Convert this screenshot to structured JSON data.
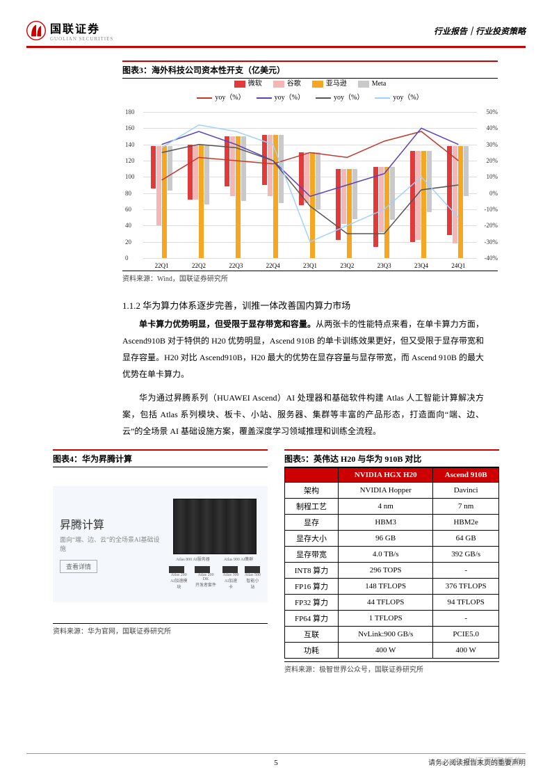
{
  "header": {
    "company": "国联证券",
    "company_en": "GUOLIAN SECURITIES",
    "breadcrumb": "行业报告｜行业投资策略"
  },
  "chart3": {
    "title": "图表3：海外科技公司资本性开支（亿美元）",
    "source": "资料来源：Wind，国联证券研究所",
    "legend_bars": [
      {
        "label": "微软",
        "color": "#e03a3a"
      },
      {
        "label": "谷歌",
        "color": "#f5b6b6"
      },
      {
        "label": "亚马逊",
        "color": "#f5a623"
      },
      {
        "label": "Meta",
        "color": "#c9c9c9"
      }
    ],
    "legend_lines": [
      {
        "label": "yoy（%）",
        "color": "#c0392b"
      },
      {
        "label": "yoy（%）",
        "color": "#5b3fbf"
      },
      {
        "label": "yoy（%）",
        "color": "#555555"
      },
      {
        "label": "yoy（%）",
        "color": "#9fd2ff"
      }
    ],
    "categories": [
      "22Q1",
      "22Q2",
      "22Q3",
      "22Q4",
      "23Q1",
      "23Q2",
      "23Q3",
      "23Q4",
      "24Q1"
    ],
    "y_left": {
      "min": 0,
      "max": 180,
      "step": 20
    },
    "y_right": {
      "min": -40,
      "max": 50,
      "step": 10
    },
    "bars": {
      "微软": [
        52,
        68,
        62,
        62,
        65,
        88,
        98,
        112,
        110
      ],
      "谷歌": [
        98,
        68,
        74,
        76,
        62,
        68,
        80,
        110,
        120
      ],
      "亚马逊": [
        138,
        140,
        150,
        152,
        130,
        110,
        112,
        132,
        138
      ],
      "Meta": [
        55,
        74,
        80,
        84,
        70,
        62,
        65,
        75,
        62
      ]
    },
    "lines": {
      "微软": [
        8,
        22,
        20,
        18,
        25,
        22,
        32,
        38,
        20
      ],
      "谷歌": [
        30,
        38,
        30,
        20,
        -2,
        5,
        12,
        40,
        30
      ],
      "亚马逊": [
        25,
        30,
        28,
        20,
        -8,
        -25,
        -25,
        2,
        5
      ],
      "Meta": [
        28,
        42,
        38,
        30,
        -30,
        -20,
        -10,
        10,
        -15
      ]
    }
  },
  "section": {
    "heading": "1.1.2 华为算力体系逐步完善，训推一体改善国内算力市场",
    "p1_bold": "单卡算力优势明显，但受限于显存带宽和容量。",
    "p1": "从两张卡的性能特点来看，在单卡算力方面，Ascend910B 对于特供的 H20 优势明显，Ascend 910B 的单卡训练效果更好，但又受限于显存带宽和显存容量。H20 对比 Ascend910B，H20 最大的优势在显存容量与显存带宽，而 Ascend 910B 的最大优势在单卡算力。",
    "p2": "华为通过昇腾系列（HUAWEI Ascend）AI 处理器和基础软件构建 Atlas 人工智能计算解决方案，包括 Atlas 系列模块、板卡、小站、服务器、集群等丰富的产品形态，打造面向“端、边、云”的全场景 AI 基础设施方案，覆盖深度学习领域推理和训练全流程。"
  },
  "panel4": {
    "title": "图表4：华为昇腾计算",
    "promo_title": "昇腾计算",
    "promo_sub": "面向“端、边、云”的全场景AI基础设施",
    "btn": "查看详情",
    "boxes": [
      "Atlas 200",
      "Atlas 200 DK",
      "Atlas 300",
      "Atlas 500"
    ],
    "sub_boxes": [
      "AI加速模块",
      "开发者套件",
      "AI加速卡",
      "智能小站"
    ],
    "rack_labels": [
      "Atlas 800 AI服务器",
      "Atlas 900 AI集群"
    ],
    "source": "资料来源：华为官网，国联证券研究所"
  },
  "panel5": {
    "title": "图表5：英伟达 H20 与华为 910B 对比",
    "source": "资料来源：极智世界公众号，国联证券研究所",
    "headers": [
      "",
      "NVIDIA HGX H20",
      "Ascend 910B"
    ],
    "rows": [
      [
        "架构",
        "NVIDIA Hopper",
        "Davinci"
      ],
      [
        "制程工艺",
        "4 nm",
        "7 nm"
      ],
      [
        "显存",
        "HBM3",
        "HBM2e"
      ],
      [
        "显存大小",
        "96 GB",
        "64 GB"
      ],
      [
        "显存带宽",
        "4.0 TB/s",
        "392 GB/s"
      ],
      [
        "INT8 算力",
        "296 TOPS",
        "-"
      ],
      [
        "FP16 算力",
        "148 TFLOPS",
        "376 TFLOPS"
      ],
      [
        "FP32 算力",
        "44 TFLOPS",
        "94 TFLOPS"
      ],
      [
        "FP64 算力",
        "1 TFLOPS",
        "-"
      ],
      [
        "互联",
        "NvLink:900 GB/s",
        "PCIE5.0"
      ],
      [
        "功耗",
        "400 W",
        "400 W"
      ]
    ]
  },
  "footer": {
    "page": "5",
    "disclaimer": "请务必阅读报告末页的重要声明",
    "watermark": "⊕ 市场洞察报告"
  }
}
